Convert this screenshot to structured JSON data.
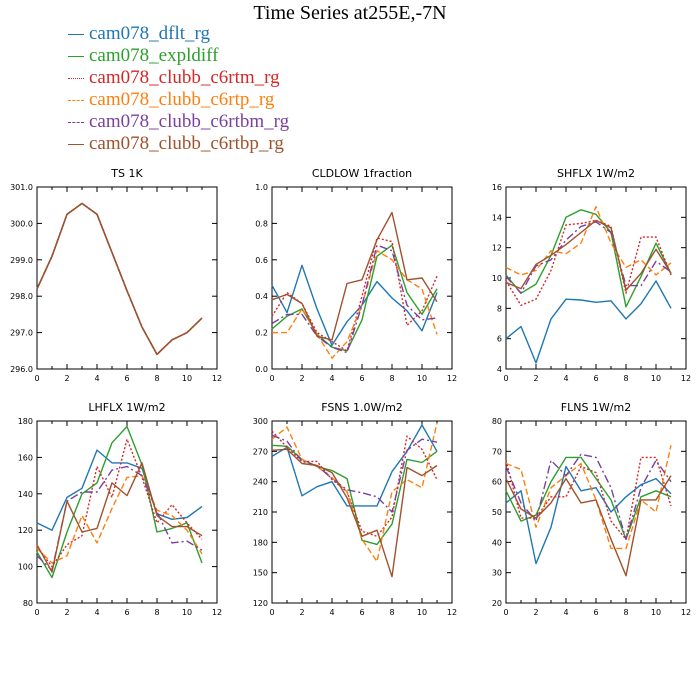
{
  "page_title": "Time Series at255E,-7N",
  "colors": {
    "cam078_dflt_rg": "#1f77b4",
    "cam078_expldiff": "#2ca02c",
    "cam078_clubb_c6rtm_rg": "#d62728",
    "cam078_clubb_c6rtp_rg": "#ff7f0e",
    "cam078_clubb_c6rtbm_rg": "#7b3fa0",
    "cam078_clubb_c6rtbp_rg": "#a0522d"
  },
  "legend": [
    {
      "name": "cam078_dflt_rg",
      "color": "#1f77b4",
      "dash": "solid"
    },
    {
      "name": "cam078_expldiff",
      "color": "#2ca02c",
      "dash": "solid"
    },
    {
      "name": "cam078_clubb_c6rtm_rg",
      "color": "#d62728",
      "dash": "dotted"
    },
    {
      "name": "cam078_clubb_c6rtp_rg",
      "color": "#ff7f0e",
      "dash": "dashed"
    },
    {
      "name": "cam078_clubb_c6rtbm_rg",
      "color": "#7b3fa0",
      "dash": "dashdot"
    },
    {
      "name": "cam078_clubb_c6rtbp_rg",
      "color": "#a0522d",
      "dash": "solid"
    }
  ],
  "chart_data": [
    {
      "type": "line",
      "title": "TS   1K",
      "x": [
        0,
        1,
        2,
        3,
        4,
        5,
        6,
        7,
        8,
        9,
        10,
        11
      ],
      "xlim": [
        0,
        12
      ],
      "xticks": [
        0,
        2,
        4,
        6,
        8,
        10,
        12
      ],
      "ylim": [
        296.0,
        301.0
      ],
      "yticks": [
        296.0,
        297.0,
        298.0,
        299.0,
        300.0,
        301.0
      ],
      "ytick_labels": [
        "296.0",
        "297.0",
        "298.0",
        "299.0",
        "300.0",
        "301.0"
      ],
      "series": [
        {
          "values": [
            298.2,
            299.1,
            300.25,
            300.55,
            300.25,
            299.2,
            298.15,
            297.15,
            296.4,
            296.8,
            297.0,
            297.4
          ]
        },
        {
          "values": [
            298.2,
            299.1,
            300.25,
            300.55,
            300.25,
            299.2,
            298.15,
            297.15,
            296.4,
            296.8,
            297.0,
            297.4
          ]
        },
        {
          "values": [
            298.2,
            299.1,
            300.25,
            300.55,
            300.25,
            299.2,
            298.15,
            297.15,
            296.4,
            296.8,
            297.0,
            297.4
          ]
        },
        {
          "values": [
            298.2,
            299.1,
            300.25,
            300.55,
            300.25,
            299.2,
            298.15,
            297.15,
            296.4,
            296.8,
            297.0,
            297.4
          ]
        },
        {
          "values": [
            298.2,
            299.1,
            300.25,
            300.55,
            300.25,
            299.2,
            298.15,
            297.15,
            296.4,
            296.8,
            297.0,
            297.4
          ]
        },
        {
          "values": [
            298.2,
            299.1,
            300.25,
            300.55,
            300.25,
            299.2,
            298.15,
            297.15,
            296.4,
            296.8,
            297.0,
            297.4
          ]
        }
      ]
    },
    {
      "type": "line",
      "title": "CLDLOW   1fraction",
      "x": [
        0,
        1,
        2,
        3,
        4,
        5,
        6,
        7,
        8,
        9,
        10,
        11
      ],
      "xlim": [
        0,
        12
      ],
      "xticks": [
        0,
        2,
        4,
        6,
        8,
        10,
        12
      ],
      "ylim": [
        0.0,
        1.0
      ],
      "yticks": [
        0.0,
        0.2,
        0.4,
        0.6,
        0.8,
        1.0
      ],
      "ytick_labels": [
        "0.0",
        "0.2",
        "0.4",
        "0.6",
        "0.8",
        "1.0"
      ],
      "series": [
        {
          "values": [
            0.46,
            0.31,
            0.57,
            0.33,
            0.13,
            0.26,
            0.35,
            0.48,
            0.39,
            0.32,
            0.21,
            0.42
          ]
        },
        {
          "values": [
            0.22,
            0.29,
            0.33,
            0.19,
            0.12,
            0.1,
            0.27,
            0.62,
            0.68,
            0.42,
            0.3,
            0.44
          ]
        },
        {
          "values": [
            0.29,
            0.42,
            0.36,
            0.2,
            0.15,
            0.1,
            0.4,
            0.72,
            0.7,
            0.24,
            0.32,
            0.51
          ]
        },
        {
          "values": [
            0.2,
            0.2,
            0.33,
            0.19,
            0.06,
            0.15,
            0.35,
            0.65,
            0.6,
            0.49,
            0.44,
            0.19
          ]
        },
        {
          "values": [
            0.25,
            0.3,
            0.3,
            0.18,
            0.12,
            0.09,
            0.35,
            0.68,
            0.65,
            0.35,
            0.27,
            0.28
          ]
        },
        {
          "values": [
            0.38,
            0.41,
            0.36,
            0.18,
            0.16,
            0.47,
            0.49,
            0.71,
            0.86,
            0.49,
            0.5,
            0.37
          ]
        }
      ]
    },
    {
      "type": "line",
      "title": "SHFLX   1W/m2",
      "x": [
        0,
        1,
        2,
        3,
        4,
        5,
        6,
        7,
        8,
        9,
        10,
        11
      ],
      "xlim": [
        0,
        12
      ],
      "xticks": [
        0,
        2,
        4,
        6,
        8,
        10,
        12
      ],
      "ylim": [
        4,
        16
      ],
      "yticks": [
        4,
        6,
        8,
        10,
        12,
        14,
        16
      ],
      "ytick_labels": [
        "4",
        "6",
        "8",
        "10",
        "12",
        "14",
        "16"
      ],
      "series": [
        {
          "values": [
            6.0,
            6.8,
            4.4,
            7.3,
            8.6,
            8.55,
            8.4,
            8.5,
            7.3,
            8.3,
            9.8,
            8.0
          ]
        },
        {
          "values": [
            10.2,
            9.0,
            9.6,
            11.5,
            14.0,
            14.5,
            14.2,
            13.0,
            8.1,
            10.1,
            12.3,
            10.3
          ]
        },
        {
          "values": [
            9.8,
            8.2,
            8.6,
            10.5,
            13.5,
            13.6,
            13.8,
            13.4,
            9.0,
            12.7,
            12.7,
            10.2
          ]
        },
        {
          "values": [
            10.7,
            10.2,
            10.5,
            11.8,
            11.6,
            12.3,
            14.7,
            12.3,
            10.7,
            11.2,
            10.2,
            11.0
          ]
        },
        {
          "values": [
            10.1,
            9.0,
            10.8,
            11.2,
            12.5,
            13.4,
            13.7,
            13.0,
            9.5,
            9.5,
            11.1,
            10.4
          ]
        },
        {
          "values": [
            9.7,
            9.3,
            10.9,
            11.5,
            12.2,
            13.0,
            13.8,
            13.3,
            9.2,
            10.3,
            11.9,
            10.3
          ]
        }
      ]
    },
    {
      "type": "line",
      "title": "LHFLX   1W/m2",
      "x": [
        0,
        1,
        2,
        3,
        4,
        5,
        6,
        7,
        8,
        9,
        10,
        11
      ],
      "xlim": [
        0,
        12
      ],
      "xticks": [
        0,
        2,
        4,
        6,
        8,
        10,
        12
      ],
      "ylim": [
        80,
        180
      ],
      "yticks": [
        80,
        100,
        120,
        140,
        160,
        180
      ],
      "ytick_labels": [
        "80",
        "100",
        "120",
        "140",
        "160",
        "180"
      ],
      "series": [
        {
          "values": [
            124,
            120,
            138,
            143,
            164,
            157,
            157,
            154,
            129,
            126,
            127,
            133
          ]
        },
        {
          "values": [
            108,
            94,
            119,
            140,
            146,
            168,
            177,
            156,
            119,
            121,
            124,
            102
          ]
        },
        {
          "values": [
            111,
            100,
            112,
            117,
            155,
            138,
            170,
            149,
            124,
            134,
            124,
            115
          ]
        },
        {
          "values": [
            110,
            102,
            106,
            128,
            113,
            132,
            149,
            150,
            131,
            128,
            120,
            107
          ]
        },
        {
          "values": [
            106,
            98,
            136,
            141,
            141,
            153,
            155,
            150,
            130,
            113,
            114,
            109
          ]
        },
        {
          "values": [
            112,
            97,
            136,
            119,
            121,
            146,
            139,
            157,
            128,
            122,
            122,
            117
          ]
        }
      ]
    },
    {
      "type": "line",
      "title": "FSNS   1.0W/m2",
      "x": [
        0,
        1,
        2,
        3,
        4,
        5,
        6,
        7,
        8,
        9,
        10,
        11
      ],
      "xlim": [
        0,
        12
      ],
      "xticks": [
        0,
        2,
        4,
        6,
        8,
        10,
        12
      ],
      "ylim": [
        120,
        300
      ],
      "yticks": [
        120,
        150,
        180,
        210,
        240,
        270,
        300
      ],
      "ytick_labels": [
        "120",
        "150",
        "180",
        "210",
        "240",
        "270",
        "300"
      ],
      "series": [
        {
          "values": [
            265,
            274,
            226,
            235,
            240,
            216,
            216,
            216,
            250,
            270,
            296,
            270
          ]
        },
        {
          "values": [
            276,
            275,
            262,
            255,
            251,
            243,
            182,
            178,
            198,
            262,
            259,
            270
          ]
        },
        {
          "values": [
            290,
            274,
            260,
            260,
            242,
            230,
            191,
            186,
            205,
            285,
            272,
            242
          ]
        },
        {
          "values": [
            282,
            294,
            262,
            255,
            244,
            230,
            183,
            161,
            230,
            242,
            234,
            298
          ]
        },
        {
          "values": [
            286,
            280,
            260,
            256,
            243,
            232,
            229,
            225,
            210,
            271,
            282,
            279
          ]
        },
        {
          "values": [
            271,
            272,
            258,
            256,
            249,
            224,
            186,
            192,
            146,
            254,
            246,
            256
          ]
        }
      ]
    },
    {
      "type": "line",
      "title": "FLNS   1W/m2",
      "x": [
        0,
        1,
        2,
        3,
        4,
        5,
        6,
        7,
        8,
        9,
        10,
        11
      ],
      "xlim": [
        0,
        12
      ],
      "xticks": [
        0,
        2,
        4,
        6,
        8,
        10,
        12
      ],
      "ylim": [
        20,
        80
      ],
      "yticks": [
        20,
        30,
        40,
        50,
        60,
        70,
        80
      ],
      "ytick_labels": [
        "20",
        "30",
        "40",
        "50",
        "60",
        "70",
        "80"
      ],
      "series": [
        {
          "values": [
            53,
            57,
            33,
            45,
            65,
            57,
            58,
            50,
            55,
            59,
            61,
            56
          ]
        },
        {
          "values": [
            57,
            47,
            49,
            60,
            68,
            68,
            61,
            54,
            41,
            55,
            57,
            55
          ]
        },
        {
          "values": [
            67,
            48,
            48,
            55,
            55,
            65,
            63,
            47,
            41,
            68,
            68,
            52
          ]
        },
        {
          "values": [
            66,
            64,
            45,
            58,
            62,
            66,
            54,
            38,
            38,
            54,
            50,
            72
          ]
        },
        {
          "values": [
            65,
            53,
            47,
            67,
            62,
            69,
            68,
            58,
            41,
            58,
            67,
            60
          ]
        },
        {
          "values": [
            61,
            51,
            48,
            53,
            61,
            53,
            54,
            41,
            29,
            54,
            54,
            62
          ]
        }
      ]
    }
  ]
}
